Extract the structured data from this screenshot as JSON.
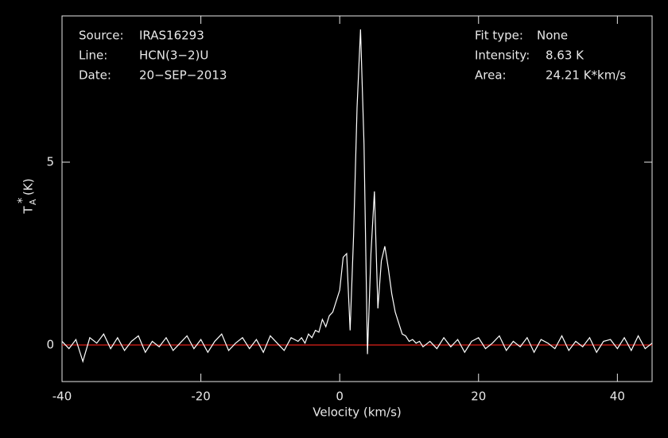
{
  "chart_data": {
    "type": "line",
    "xlabel": "Velocity (km/s)",
    "ylabel": {
      "main": "T",
      "sup": "*",
      "sub": "A",
      "unit": "(K)"
    },
    "annotations_left": [
      {
        "label": "Source:",
        "value": "IRAS16293"
      },
      {
        "label": "Line:",
        "value": "HCN(3−2)U"
      },
      {
        "label": "Date:",
        "value": "20−SEP−2013"
      }
    ],
    "annotations_right": [
      {
        "label": "Fit type:",
        "value": "None"
      },
      {
        "label": "Intensity:",
        "value": "8.63 K"
      },
      {
        "label": "Area:",
        "value": "24.21 K*km/s"
      }
    ],
    "xlim": [
      -40,
      45
    ],
    "ylim": [
      -1,
      9
    ],
    "xticks": [
      -40,
      -20,
      0,
      20,
      40
    ],
    "yticks": [
      0,
      5
    ],
    "baseline": {
      "value": 0,
      "color": "#e0201a"
    },
    "x": [
      -40,
      -39,
      -38,
      -37,
      -36,
      -35,
      -34,
      -33,
      -32,
      -31,
      -30,
      -29,
      -28,
      -27,
      -26,
      -25,
      -24,
      -23,
      -22,
      -21,
      -20,
      -19,
      -18,
      -17,
      -16,
      -15,
      -14,
      -13,
      -12,
      -11,
      -10,
      -9,
      -8,
      -7,
      -6,
      -5.5,
      -5,
      -4.5,
      -4,
      -3.5,
      -3,
      -2.5,
      -2,
      -1.5,
      -1,
      -0.5,
      0,
      0.5,
      1,
      1.5,
      2,
      2.5,
      3,
      3.5,
      4,
      4.5,
      5,
      5.5,
      6,
      6.5,
      7,
      7.5,
      8,
      8.5,
      9,
      9.5,
      10,
      10.5,
      11,
      11.5,
      12,
      13,
      14,
      15,
      16,
      17,
      18,
      19,
      20,
      21,
      22,
      23,
      24,
      25,
      26,
      27,
      28,
      29,
      30,
      31,
      32,
      33,
      34,
      35,
      36,
      37,
      38,
      39,
      40,
      41,
      42,
      43,
      44,
      45
    ],
    "series": [
      {
        "color": "#ffffff",
        "values": [
          0.1,
          -0.1,
          0.15,
          -0.45,
          0.2,
          0.05,
          0.3,
          -0.1,
          0.2,
          -0.15,
          0.1,
          0.25,
          -0.2,
          0.1,
          -0.05,
          0.2,
          -0.15,
          0.05,
          0.25,
          -0.1,
          0.15,
          -0.2,
          0.1,
          0.3,
          -0.15,
          0.05,
          0.2,
          -0.1,
          0.15,
          -0.2,
          0.25,
          0.05,
          -0.15,
          0.2,
          0.1,
          0.2,
          0.05,
          0.3,
          0.2,
          0.4,
          0.35,
          0.7,
          0.5,
          0.8,
          0.9,
          1.2,
          1.5,
          2.4,
          2.5,
          0.4,
          3.0,
          6.5,
          8.63,
          5.5,
          -0.25,
          2.5,
          4.2,
          1.0,
          2.3,
          2.7,
          2.1,
          1.4,
          0.9,
          0.6,
          0.3,
          0.25,
          0.1,
          0.15,
          0.05,
          0.1,
          -0.05,
          0.1,
          -0.1,
          0.2,
          -0.05,
          0.15,
          -0.2,
          0.1,
          0.2,
          -0.1,
          0.05,
          0.25,
          -0.15,
          0.1,
          -0.05,
          0.2,
          -0.2,
          0.15,
          0.05,
          -0.1,
          0.25,
          -0.15,
          0.1,
          -0.05,
          0.2,
          -0.2,
          0.1,
          0.15,
          -0.1,
          0.2,
          -0.15,
          0.25,
          -0.1,
          0.05
        ]
      }
    ]
  }
}
